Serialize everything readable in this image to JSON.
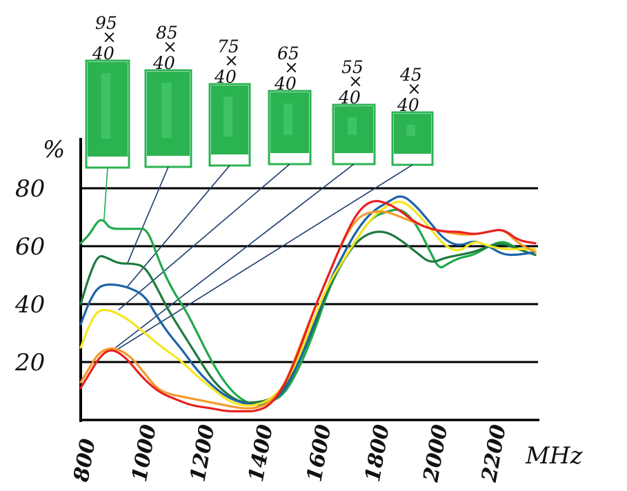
{
  "chart_data": {
    "type": "line",
    "title": "",
    "xlabel": "MHz",
    "ylabel": "%",
    "xlim": [
      800,
      2350
    ],
    "ylim": [
      0,
      80
    ],
    "x_ticks": [
      "800",
      "1000",
      "1200",
      "1400",
      "1600",
      "1800",
      "2000",
      "2200"
    ],
    "y_ticks": [
      "80",
      "60",
      "40",
      "20"
    ],
    "y_tick_values": [
      80,
      60,
      40,
      20
    ],
    "grid": true,
    "legend": "none",
    "series": [
      {
        "name": "95 × 40",
        "color": "#1fa84c",
        "points": [
          [
            800,
            61
          ],
          [
            830,
            64
          ],
          [
            860,
            69
          ],
          [
            880,
            69
          ],
          [
            900,
            66
          ],
          [
            950,
            66
          ],
          [
            1000,
            66
          ],
          [
            1020,
            66
          ],
          [
            1040,
            63
          ],
          [
            1080,
            52
          ],
          [
            1120,
            44
          ],
          [
            1160,
            38
          ],
          [
            1200,
            30
          ],
          [
            1250,
            20
          ],
          [
            1300,
            12
          ],
          [
            1350,
            7
          ],
          [
            1400,
            5
          ],
          [
            1450,
            6
          ],
          [
            1500,
            9
          ],
          [
            1550,
            18
          ],
          [
            1600,
            30
          ],
          [
            1650,
            45
          ],
          [
            1700,
            55
          ],
          [
            1750,
            63
          ],
          [
            1800,
            70
          ],
          [
            1850,
            72
          ],
          [
            1900,
            73
          ],
          [
            1950,
            68
          ],
          [
            2000,
            58
          ],
          [
            2030,
            52
          ],
          [
            2060,
            54
          ],
          [
            2100,
            56
          ],
          [
            2150,
            57
          ],
          [
            2200,
            60
          ],
          [
            2250,
            62
          ],
          [
            2300,
            59
          ],
          [
            2360,
            57
          ]
        ]
      },
      {
        "name": "85 × 40",
        "color": "#1e7a3e",
        "points": [
          [
            800,
            40
          ],
          [
            830,
            50
          ],
          [
            860,
            57
          ],
          [
            890,
            56
          ],
          [
            930,
            54
          ],
          [
            980,
            54
          ],
          [
            1020,
            53
          ],
          [
            1060,
            46
          ],
          [
            1100,
            38
          ],
          [
            1150,
            30
          ],
          [
            1200,
            22
          ],
          [
            1250,
            14
          ],
          [
            1300,
            9
          ],
          [
            1350,
            6
          ],
          [
            1400,
            6
          ],
          [
            1450,
            7
          ],
          [
            1500,
            11
          ],
          [
            1550,
            20
          ],
          [
            1600,
            32
          ],
          [
            1650,
            46
          ],
          [
            1700,
            55
          ],
          [
            1750,
            62
          ],
          [
            1800,
            65
          ],
          [
            1850,
            65
          ],
          [
            1900,
            62
          ],
          [
            1950,
            58
          ],
          [
            2000,
            54
          ],
          [
            2050,
            56
          ],
          [
            2100,
            57
          ],
          [
            2150,
            58
          ],
          [
            2200,
            60
          ],
          [
            2250,
            61
          ],
          [
            2300,
            59
          ],
          [
            2360,
            57
          ]
        ]
      },
      {
        "name": "75 × 40",
        "color": "#1c63a8",
        "points": [
          [
            800,
            33
          ],
          [
            830,
            41
          ],
          [
            860,
            46
          ],
          [
            900,
            47
          ],
          [
            960,
            46
          ],
          [
            1020,
            43
          ],
          [
            1060,
            36
          ],
          [
            1100,
            30
          ],
          [
            1150,
            24
          ],
          [
            1200,
            17
          ],
          [
            1250,
            12
          ],
          [
            1300,
            8
          ],
          [
            1350,
            6
          ],
          [
            1400,
            5
          ],
          [
            1450,
            6
          ],
          [
            1500,
            10
          ],
          [
            1550,
            20
          ],
          [
            1600,
            33
          ],
          [
            1650,
            47
          ],
          [
            1700,
            57
          ],
          [
            1750,
            66
          ],
          [
            1800,
            72
          ],
          [
            1850,
            75
          ],
          [
            1900,
            78
          ],
          [
            1950,
            74
          ],
          [
            2000,
            68
          ],
          [
            2050,
            62
          ],
          [
            2100,
            60
          ],
          [
            2150,
            62
          ],
          [
            2200,
            60
          ],
          [
            2250,
            57
          ],
          [
            2300,
            57
          ],
          [
            2360,
            58
          ]
        ]
      },
      {
        "name": "65 × 40",
        "color": "#f5e61e",
        "points": [
          [
            800,
            25
          ],
          [
            830,
            33
          ],
          [
            860,
            38
          ],
          [
            900,
            38
          ],
          [
            960,
            35
          ],
          [
            1020,
            30
          ],
          [
            1080,
            25
          ],
          [
            1150,
            20
          ],
          [
            1200,
            15
          ],
          [
            1250,
            11
          ],
          [
            1300,
            7
          ],
          [
            1350,
            5
          ],
          [
            1400,
            5
          ],
          [
            1450,
            7
          ],
          [
            1500,
            12
          ],
          [
            1550,
            22
          ],
          [
            1600,
            35
          ],
          [
            1650,
            47
          ],
          [
            1700,
            55
          ],
          [
            1750,
            63
          ],
          [
            1800,
            70
          ],
          [
            1850,
            74
          ],
          [
            1900,
            76
          ],
          [
            1950,
            72
          ],
          [
            2000,
            66
          ],
          [
            2050,
            60
          ],
          [
            2100,
            58
          ],
          [
            2150,
            62
          ],
          [
            2200,
            60
          ],
          [
            2250,
            59
          ],
          [
            2300,
            59
          ],
          [
            2360,
            59
          ]
        ]
      },
      {
        "name": "55 × 40",
        "color": "#f39a2a",
        "points": [
          [
            800,
            13
          ],
          [
            830,
            18
          ],
          [
            860,
            23
          ],
          [
            900,
            25
          ],
          [
            940,
            24
          ],
          [
            980,
            21
          ],
          [
            1020,
            16
          ],
          [
            1060,
            11
          ],
          [
            1100,
            9
          ],
          [
            1150,
            8
          ],
          [
            1200,
            7
          ],
          [
            1250,
            6
          ],
          [
            1300,
            5
          ],
          [
            1350,
            4
          ],
          [
            1400,
            4
          ],
          [
            1450,
            6
          ],
          [
            1500,
            12
          ],
          [
            1550,
            25
          ],
          [
            1600,
            38
          ],
          [
            1650,
            50
          ],
          [
            1700,
            62
          ],
          [
            1750,
            70
          ],
          [
            1800,
            72
          ],
          [
            1850,
            72
          ],
          [
            1900,
            70
          ],
          [
            1950,
            68
          ],
          [
            2000,
            66
          ],
          [
            2050,
            65
          ],
          [
            2100,
            64
          ],
          [
            2150,
            64
          ],
          [
            2200,
            65
          ],
          [
            2250,
            66
          ],
          [
            2300,
            61
          ],
          [
            2360,
            58
          ]
        ]
      },
      {
        "name": "45 × 40",
        "color": "#e82020",
        "points": [
          [
            800,
            11
          ],
          [
            830,
            16
          ],
          [
            860,
            21
          ],
          [
            890,
            24
          ],
          [
            920,
            24
          ],
          [
            960,
            21
          ],
          [
            1000,
            16
          ],
          [
            1040,
            12
          ],
          [
            1080,
            9
          ],
          [
            1130,
            7
          ],
          [
            1180,
            5
          ],
          [
            1250,
            4
          ],
          [
            1300,
            3
          ],
          [
            1350,
            3
          ],
          [
            1400,
            3
          ],
          [
            1450,
            5
          ],
          [
            1500,
            12
          ],
          [
            1550,
            24
          ],
          [
            1600,
            38
          ],
          [
            1650,
            50
          ],
          [
            1700,
            62
          ],
          [
            1750,
            72
          ],
          [
            1800,
            76
          ],
          [
            1850,
            75
          ],
          [
            1900,
            72
          ],
          [
            1950,
            68
          ],
          [
            2000,
            66
          ],
          [
            2050,
            65
          ],
          [
            2100,
            65
          ],
          [
            2150,
            64
          ],
          [
            2200,
            65
          ],
          [
            2250,
            66
          ],
          [
            2300,
            62
          ],
          [
            2360,
            61
          ]
        ]
      }
    ],
    "antenna_sizes": [
      {
        "width": "95",
        "times": "×",
        "height": "40",
        "color": "#2bb352",
        "points_to": [
          880,
          69
        ]
      },
      {
        "width": "85",
        "times": "×",
        "height": "40",
        "color": "#2bb352",
        "points_to": [
          960,
          54
        ]
      },
      {
        "width": "75",
        "times": "×",
        "height": "40",
        "color": "#2bb352",
        "points_to": [
          960,
          46
        ]
      },
      {
        "width": "65",
        "times": "×",
        "height": "40",
        "color": "#2bb352",
        "points_to": [
          930,
          38
        ]
      },
      {
        "width": "55",
        "times": "×",
        "height": "40",
        "color": "#2bb352",
        "points_to": [
          920,
          25
        ]
      },
      {
        "width": "45",
        "times": "×",
        "height": "40",
        "color": "#2bb352",
        "points_to": [
          920,
          24
        ]
      }
    ]
  }
}
